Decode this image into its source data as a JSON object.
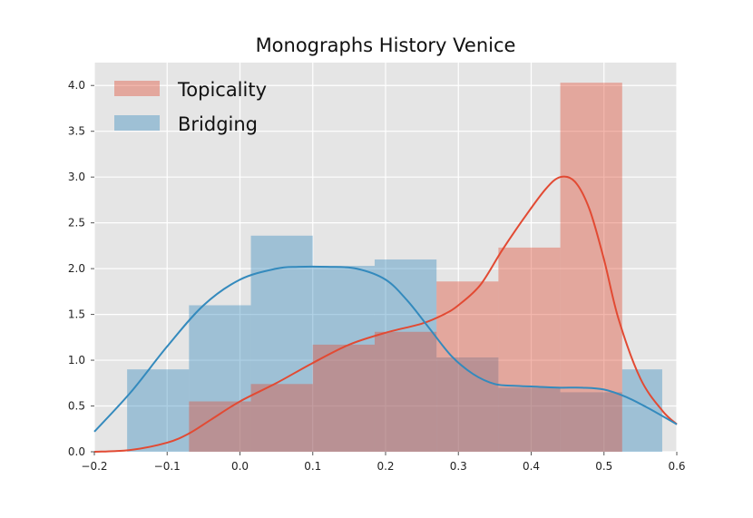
{
  "chart_data": {
    "type": "bar",
    "title": "Monographs History Venice",
    "xlabel": "",
    "ylabel": "",
    "xlim": [
      -0.2,
      0.6
    ],
    "ylim": [
      0,
      4.25
    ],
    "xticks": [
      "−0.2",
      "−0.1",
      "0.0",
      "0.1",
      "0.2",
      "0.3",
      "0.4",
      "0.5",
      "0.6"
    ],
    "xtick_values": [
      -0.2,
      -0.1,
      0.0,
      0.1,
      0.2,
      0.3,
      0.4,
      0.5,
      0.6
    ],
    "yticks": [
      "0.0",
      "0.5",
      "1.0",
      "1.5",
      "2.0",
      "2.5",
      "3.0",
      "3.5",
      "4.0"
    ],
    "ytick_values": [
      0.0,
      0.5,
      1.0,
      1.5,
      2.0,
      2.5,
      3.0,
      3.5,
      4.0
    ],
    "grid": true,
    "legend": "top-left",
    "series": [
      {
        "name": "Topicality",
        "color": "#e24a33",
        "hist_bins": [
          [
            -0.07,
            0.015,
            0.55
          ],
          [
            0.015,
            0.1,
            0.74
          ],
          [
            0.1,
            0.185,
            1.17
          ],
          [
            0.185,
            0.27,
            1.31
          ],
          [
            0.27,
            0.355,
            1.86
          ],
          [
            0.355,
            0.44,
            2.23
          ],
          [
            0.44,
            0.525,
            4.03
          ]
        ],
        "kde_x": [
          -0.2,
          -0.15,
          -0.1,
          -0.07,
          -0.04,
          0.0,
          0.05,
          0.1,
          0.15,
          0.2,
          0.25,
          0.28,
          0.3,
          0.33,
          0.36,
          0.39,
          0.42,
          0.44,
          0.46,
          0.48,
          0.5,
          0.52,
          0.55,
          0.58,
          0.6
        ],
        "kde_y": [
          0.0,
          0.02,
          0.1,
          0.2,
          0.35,
          0.55,
          0.75,
          0.97,
          1.17,
          1.3,
          1.4,
          1.5,
          1.6,
          1.82,
          2.2,
          2.55,
          2.87,
          3.0,
          2.95,
          2.65,
          2.1,
          1.45,
          0.8,
          0.45,
          0.3
        ]
      },
      {
        "name": "Bridging",
        "color": "#348abd",
        "hist_bins": [
          [
            -0.155,
            -0.07,
            0.9
          ],
          [
            -0.07,
            0.015,
            1.6
          ],
          [
            0.015,
            0.1,
            2.36
          ],
          [
            0.1,
            0.185,
            2.03
          ],
          [
            0.185,
            0.27,
            2.1
          ],
          [
            0.27,
            0.355,
            1.03
          ],
          [
            0.355,
            0.44,
            0.7
          ],
          [
            0.44,
            0.525,
            0.65
          ],
          [
            0.525,
            0.58,
            0.9
          ]
        ],
        "kde_x": [
          -0.2,
          -0.15,
          -0.1,
          -0.05,
          0.0,
          0.05,
          0.08,
          0.12,
          0.16,
          0.2,
          0.23,
          0.26,
          0.29,
          0.32,
          0.35,
          0.38,
          0.41,
          0.44,
          0.47,
          0.5,
          0.53,
          0.56,
          0.6
        ],
        "kde_y": [
          0.22,
          0.65,
          1.15,
          1.6,
          1.88,
          2.0,
          2.02,
          2.02,
          2.0,
          1.88,
          1.65,
          1.35,
          1.05,
          0.85,
          0.74,
          0.72,
          0.71,
          0.7,
          0.7,
          0.68,
          0.6,
          0.48,
          0.3
        ]
      }
    ]
  }
}
